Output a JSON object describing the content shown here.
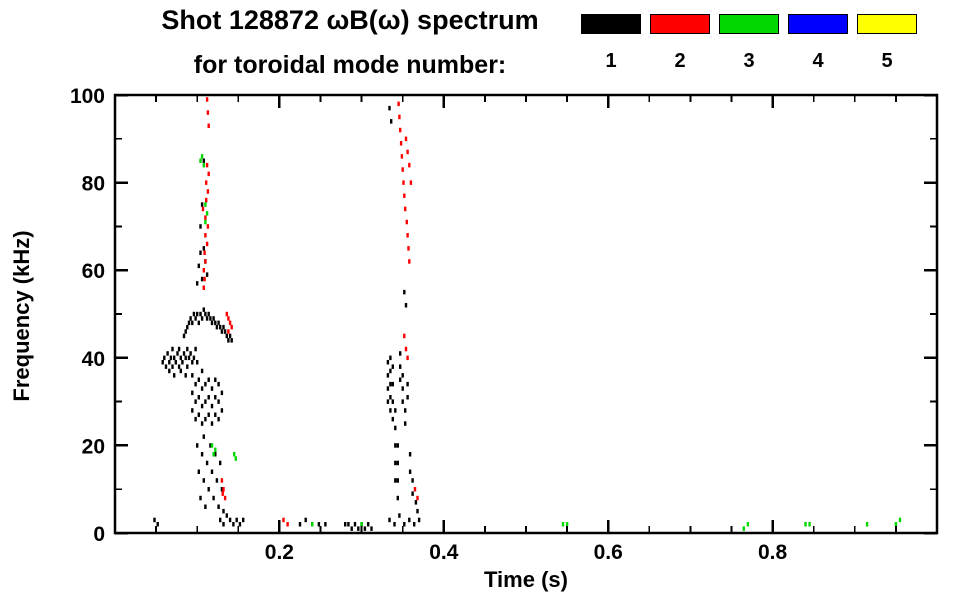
{
  "header": {
    "title_line1": "Shot 128872 ωB(ω) spectrum",
    "title_line2": "for toroidal mode number:"
  },
  "legend": {
    "items": [
      {
        "label": "1",
        "color": "#000000"
      },
      {
        "label": "2",
        "color": "#ff0000"
      },
      {
        "label": "3",
        "color": "#00d800"
      },
      {
        "label": "4",
        "color": "#0000ff"
      },
      {
        "label": "5",
        "color": "#ffff00"
      }
    ]
  },
  "chart_data": {
    "type": "scatter",
    "title": "Shot 128872 ωB(ω) spectrum",
    "subtitle": "for toroidal mode number:",
    "xlabel": "Time (s)",
    "ylabel": "Frequency (kHz)",
    "xlim": [
      0.0,
      1.0
    ],
    "ylim": [
      0,
      100
    ],
    "xticks": [
      0.2,
      0.4,
      0.6,
      0.8
    ],
    "xtick_labels": [
      "0.2",
      "0.4",
      "0.6",
      "0.8"
    ],
    "xminor_step": 0.05,
    "yticks": [
      0,
      20,
      40,
      60,
      80,
      100
    ],
    "ytick_labels": [
      "0",
      "20",
      "40",
      "60",
      "80",
      "100"
    ],
    "yminor_step": 10,
    "grid": false,
    "legend_position": "top-right",
    "series": [
      {
        "name": "1",
        "color": "#000000",
        "points": [
          [
            0.058,
            39
          ],
          [
            0.06,
            40
          ],
          [
            0.062,
            38
          ],
          [
            0.064,
            41
          ],
          [
            0.066,
            39
          ],
          [
            0.066,
            37
          ],
          [
            0.068,
            40
          ],
          [
            0.07,
            42
          ],
          [
            0.07,
            38
          ],
          [
            0.072,
            40
          ],
          [
            0.072,
            36
          ],
          [
            0.074,
            39
          ],
          [
            0.076,
            41
          ],
          [
            0.078,
            38
          ],
          [
            0.078,
            42
          ],
          [
            0.08,
            40
          ],
          [
            0.08,
            37
          ],
          [
            0.082,
            39
          ],
          [
            0.084,
            41
          ],
          [
            0.086,
            40
          ],
          [
            0.086,
            36
          ],
          [
            0.088,
            38
          ],
          [
            0.088,
            42
          ],
          [
            0.09,
            40
          ],
          [
            0.092,
            41
          ],
          [
            0.094,
            39
          ],
          [
            0.096,
            40
          ],
          [
            0.098,
            42
          ],
          [
            0.1,
            39
          ],
          [
            0.084,
            45
          ],
          [
            0.086,
            46
          ],
          [
            0.088,
            47
          ],
          [
            0.09,
            48
          ],
          [
            0.092,
            49
          ],
          [
            0.094,
            48
          ],
          [
            0.096,
            50
          ],
          [
            0.098,
            49
          ],
          [
            0.1,
            50
          ],
          [
            0.102,
            48
          ],
          [
            0.104,
            50
          ],
          [
            0.106,
            49
          ],
          [
            0.108,
            51
          ],
          [
            0.11,
            50
          ],
          [
            0.112,
            49
          ],
          [
            0.114,
            50
          ],
          [
            0.116,
            49
          ],
          [
            0.118,
            48
          ],
          [
            0.12,
            49
          ],
          [
            0.122,
            48
          ],
          [
            0.124,
            47
          ],
          [
            0.126,
            48
          ],
          [
            0.128,
            47
          ],
          [
            0.13,
            46
          ],
          [
            0.132,
            47
          ],
          [
            0.134,
            46
          ],
          [
            0.136,
            45
          ],
          [
            0.138,
            44
          ],
          [
            0.14,
            45
          ],
          [
            0.142,
            44
          ],
          [
            0.094,
            28
          ],
          [
            0.094,
            32
          ],
          [
            0.094,
            36
          ],
          [
            0.098,
            26
          ],
          [
            0.098,
            30
          ],
          [
            0.098,
            34
          ],
          [
            0.102,
            27
          ],
          [
            0.102,
            31
          ],
          [
            0.102,
            35
          ],
          [
            0.106,
            25
          ],
          [
            0.106,
            29
          ],
          [
            0.106,
            33
          ],
          [
            0.106,
            37
          ],
          [
            0.11,
            26
          ],
          [
            0.11,
            30
          ],
          [
            0.11,
            34
          ],
          [
            0.114,
            27
          ],
          [
            0.114,
            31
          ],
          [
            0.114,
            35
          ],
          [
            0.118,
            25
          ],
          [
            0.118,
            29
          ],
          [
            0.118,
            33
          ],
          [
            0.122,
            27
          ],
          [
            0.122,
            31
          ],
          [
            0.122,
            35
          ],
          [
            0.126,
            26
          ],
          [
            0.126,
            30
          ],
          [
            0.126,
            34
          ],
          [
            0.13,
            28
          ],
          [
            0.13,
            32
          ],
          [
            0.1,
            20
          ],
          [
            0.102,
            14
          ],
          [
            0.104,
            8
          ],
          [
            0.106,
            18
          ],
          [
            0.108,
            12
          ],
          [
            0.108,
            22
          ],
          [
            0.11,
            6
          ],
          [
            0.112,
            16
          ],
          [
            0.114,
            10
          ],
          [
            0.116,
            20
          ],
          [
            0.118,
            14
          ],
          [
            0.12,
            8
          ],
          [
            0.122,
            18
          ],
          [
            0.124,
            12
          ],
          [
            0.126,
            6
          ],
          [
            0.128,
            16
          ],
          [
            0.13,
            10
          ],
          [
            0.132,
            5
          ],
          [
            0.1,
            57
          ],
          [
            0.102,
            61
          ],
          [
            0.104,
            64
          ],
          [
            0.106,
            58
          ],
          [
            0.108,
            65
          ],
          [
            0.104,
            70
          ],
          [
            0.106,
            75
          ],
          [
            0.108,
            85
          ],
          [
            0.11,
            62
          ],
          [
            0.112,
            59
          ],
          [
            0.128,
            3
          ],
          [
            0.132,
            2
          ],
          [
            0.136,
            4
          ],
          [
            0.14,
            3
          ],
          [
            0.144,
            2
          ],
          [
            0.148,
            3
          ],
          [
            0.152,
            2
          ],
          [
            0.156,
            3
          ],
          [
            0.048,
            3
          ],
          [
            0.052,
            2
          ],
          [
            0.225,
            2
          ],
          [
            0.232,
            3
          ],
          [
            0.24,
            2
          ],
          [
            0.248,
            2
          ],
          [
            0.256,
            2
          ],
          [
            0.28,
            2
          ],
          [
            0.284,
            2
          ],
          [
            0.288,
            1
          ],
          [
            0.292,
            2
          ],
          [
            0.296,
            1
          ],
          [
            0.3,
            2
          ],
          [
            0.304,
            1
          ],
          [
            0.308,
            2
          ],
          [
            0.312,
            1
          ],
          [
            0.332,
            30
          ],
          [
            0.332,
            33
          ],
          [
            0.332,
            36
          ],
          [
            0.332,
            39
          ],
          [
            0.335,
            28
          ],
          [
            0.335,
            31
          ],
          [
            0.335,
            34
          ],
          [
            0.335,
            37
          ],
          [
            0.335,
            40
          ],
          [
            0.338,
            26
          ],
          [
            0.338,
            30
          ],
          [
            0.338,
            34
          ],
          [
            0.338,
            38
          ],
          [
            0.341,
            12
          ],
          [
            0.341,
            16
          ],
          [
            0.341,
            20
          ],
          [
            0.341,
            24
          ],
          [
            0.341,
            28
          ],
          [
            0.344,
            8
          ],
          [
            0.344,
            12
          ],
          [
            0.344,
            16
          ],
          [
            0.344,
            20
          ],
          [
            0.347,
            35
          ],
          [
            0.347,
            38
          ],
          [
            0.347,
            41
          ],
          [
            0.35,
            30
          ],
          [
            0.35,
            33
          ],
          [
            0.35,
            36
          ],
          [
            0.353,
            25
          ],
          [
            0.353,
            28
          ],
          [
            0.356,
            31
          ],
          [
            0.356,
            34
          ],
          [
            0.359,
            14
          ],
          [
            0.359,
            18
          ],
          [
            0.362,
            9
          ],
          [
            0.362,
            12
          ],
          [
            0.334,
            97
          ],
          [
            0.336,
            94
          ],
          [
            0.352,
            55
          ],
          [
            0.354,
            52
          ],
          [
            0.334,
            3
          ],
          [
            0.34,
            2
          ],
          [
            0.346,
            4
          ],
          [
            0.352,
            2
          ],
          [
            0.358,
            3
          ],
          [
            0.364,
            2
          ],
          [
            0.37,
            3
          ],
          [
            0.366,
            7
          ],
          [
            0.368,
            5
          ]
        ]
      },
      {
        "name": "2",
        "color": "#ff0000",
        "points": [
          [
            0.108,
            56
          ],
          [
            0.108,
            60
          ],
          [
            0.109,
            64
          ],
          [
            0.11,
            68
          ],
          [
            0.11,
            72
          ],
          [
            0.111,
            76
          ],
          [
            0.111,
            80
          ],
          [
            0.112,
            84
          ],
          [
            0.109,
            58
          ],
          [
            0.11,
            62
          ],
          [
            0.112,
            66
          ],
          [
            0.113,
            70
          ],
          [
            0.107,
            74
          ],
          [
            0.113,
            78
          ],
          [
            0.114,
            82
          ],
          [
            0.112,
            99
          ],
          [
            0.113,
            96
          ],
          [
            0.114,
            93
          ],
          [
            0.136,
            50
          ],
          [
            0.138,
            49
          ],
          [
            0.14,
            48
          ],
          [
            0.142,
            47
          ],
          [
            0.138,
            46
          ],
          [
            0.13,
            12
          ],
          [
            0.132,
            10
          ],
          [
            0.134,
            8
          ],
          [
            0.131,
            9
          ],
          [
            0.205,
            3
          ],
          [
            0.21,
            2
          ],
          [
            0.345,
            98
          ],
          [
            0.346,
            95
          ],
          [
            0.347,
            92
          ],
          [
            0.348,
            89
          ],
          [
            0.349,
            86
          ],
          [
            0.35,
            83
          ],
          [
            0.351,
            80
          ],
          [
            0.352,
            77
          ],
          [
            0.353,
            74
          ],
          [
            0.355,
            71
          ],
          [
            0.356,
            68
          ],
          [
            0.357,
            65
          ],
          [
            0.358,
            62
          ],
          [
            0.354,
            90
          ],
          [
            0.356,
            87
          ],
          [
            0.358,
            84
          ],
          [
            0.36,
            80
          ],
          [
            0.352,
            45
          ],
          [
            0.354,
            42
          ],
          [
            0.356,
            40
          ],
          [
            0.365,
            10
          ],
          [
            0.368,
            8
          ]
        ]
      },
      {
        "name": "3",
        "color": "#00d800",
        "points": [
          [
            0.104,
            85
          ],
          [
            0.106,
            86
          ],
          [
            0.108,
            84
          ],
          [
            0.11,
            75
          ],
          [
            0.112,
            73
          ],
          [
            0.11,
            71
          ],
          [
            0.118,
            20
          ],
          [
            0.12,
            18
          ],
          [
            0.122,
            19
          ],
          [
            0.145,
            18
          ],
          [
            0.147,
            17
          ],
          [
            0.24,
            2
          ],
          [
            0.3,
            2
          ],
          [
            0.545,
            2
          ],
          [
            0.55,
            2
          ],
          [
            0.765,
            1
          ],
          [
            0.77,
            2
          ],
          [
            0.84,
            2
          ],
          [
            0.845,
            2
          ],
          [
            0.915,
            2
          ],
          [
            0.95,
            2
          ],
          [
            0.955,
            3
          ]
        ]
      },
      {
        "name": "4",
        "color": "#0000ff",
        "points": []
      },
      {
        "name": "5",
        "color": "#ffff00",
        "points": []
      }
    ]
  }
}
